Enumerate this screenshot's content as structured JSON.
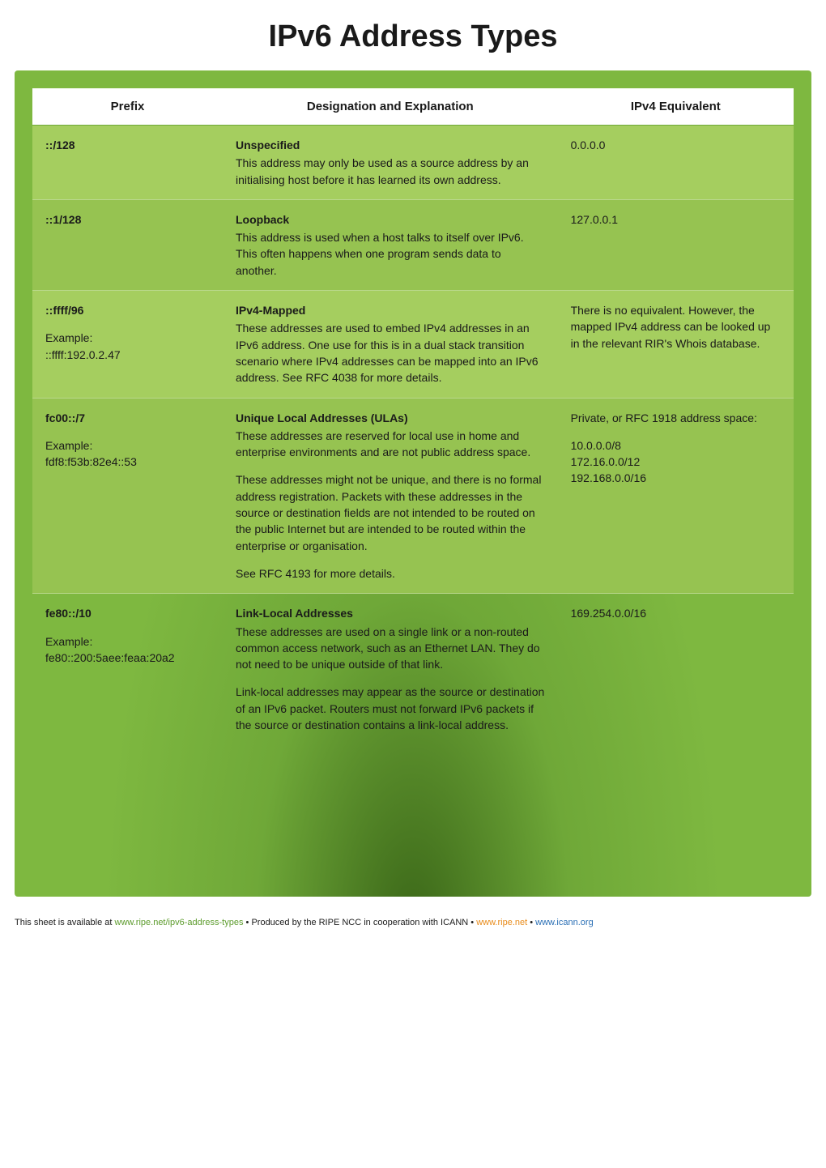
{
  "page": {
    "title": "IPv6 Address Types"
  },
  "table": {
    "headers": {
      "prefix": "Prefix",
      "designation": "Designation and Explanation",
      "equivalent": "IPv4 Equivalent"
    },
    "colors": {
      "header_bg": "#ffffff",
      "row_light": "#a5ce5f",
      "row_dark": "#96c351",
      "container_bg": "#7eb840",
      "text": "#1a1a1a"
    },
    "rows": [
      {
        "prefix": "::/128",
        "example_label": "",
        "example": "",
        "designation_title": "Unspecified",
        "designation_body": "This address may only be used as a source address by an initialising host before it has learned its own address.",
        "designation_para2": "",
        "designation_para3": "",
        "equivalent": "0.0.0.0",
        "equivalent_para2": "",
        "row_class": "row-light"
      },
      {
        "prefix": "::1/128",
        "example_label": "",
        "example": "",
        "designation_title": "Loopback",
        "designation_body": "This address is used when a host talks to itself over IPv6. This often happens when one program sends data to another.",
        "designation_para2": "",
        "designation_para3": "",
        "equivalent": "127.0.0.1",
        "equivalent_para2": "",
        "row_class": "row-dark"
      },
      {
        "prefix": "::ffff/96",
        "example_label": "Example:",
        "example": "::ffff:192.0.2.47",
        "designation_title": "IPv4-Mapped",
        "designation_body": "These addresses are used to embed IPv4 addresses in an IPv6 address. One use for this is in a dual stack transition scenario where IPv4 addresses can be mapped into an IPv6 address. See RFC 4038 for more details.",
        "designation_para2": "",
        "designation_para3": "",
        "equivalent": "There is no equivalent. However, the mapped IPv4 address can be looked up in the relevant RIR's Whois database.",
        "equivalent_para2": "",
        "row_class": "row-light"
      },
      {
        "prefix": "fc00::/7",
        "example_label": "Example:",
        "example": "fdf8:f53b:82e4::53",
        "designation_title": "Unique Local Addresses (ULAs)",
        "designation_body": "These addresses are reserved for local use in home and enterprise environments and are not public address space.",
        "designation_para2": "These addresses might not be unique, and there is no formal address registration. Packets with these addresses in the source or destination fields are not intended to be routed on the public Internet but are intended to be routed within the enterprise or organisation.",
        "designation_para3": "See RFC 4193 for more details.",
        "equivalent": "Private, or RFC 1918 address space:",
        "equivalent_para2": "10.0.0.0/8\n172.16.0.0/12\n192.168.0.0/16",
        "row_class": "row-dark"
      },
      {
        "prefix": "fe80::/10",
        "example_label": "Example:",
        "example": "fe80::200:5aee:feaa:20a2",
        "designation_title": "Link-Local Addresses",
        "designation_body": "These addresses are used on a single link or a non-routed common access network, such as an Ethernet LAN. They do not need to be unique outside of that link.",
        "designation_para2": "Link-local addresses may appear as the source or destination of an IPv6 packet. Routers must not forward IPv6 packets if the source or destination contains a link-local address.",
        "designation_para3": "",
        "equivalent": "169.254.0.0/16",
        "equivalent_para2": "",
        "row_class": "row-last"
      }
    ]
  },
  "footer": {
    "text_1": "This sheet is available at ",
    "link_1": "www.ripe.net/ipv6-address-types",
    "text_2": " • Produced by the RIPE NCC in cooperation with ICANN • ",
    "link_2": "www.ripe.net",
    "text_3": " • ",
    "link_3": "www.icann.org"
  }
}
